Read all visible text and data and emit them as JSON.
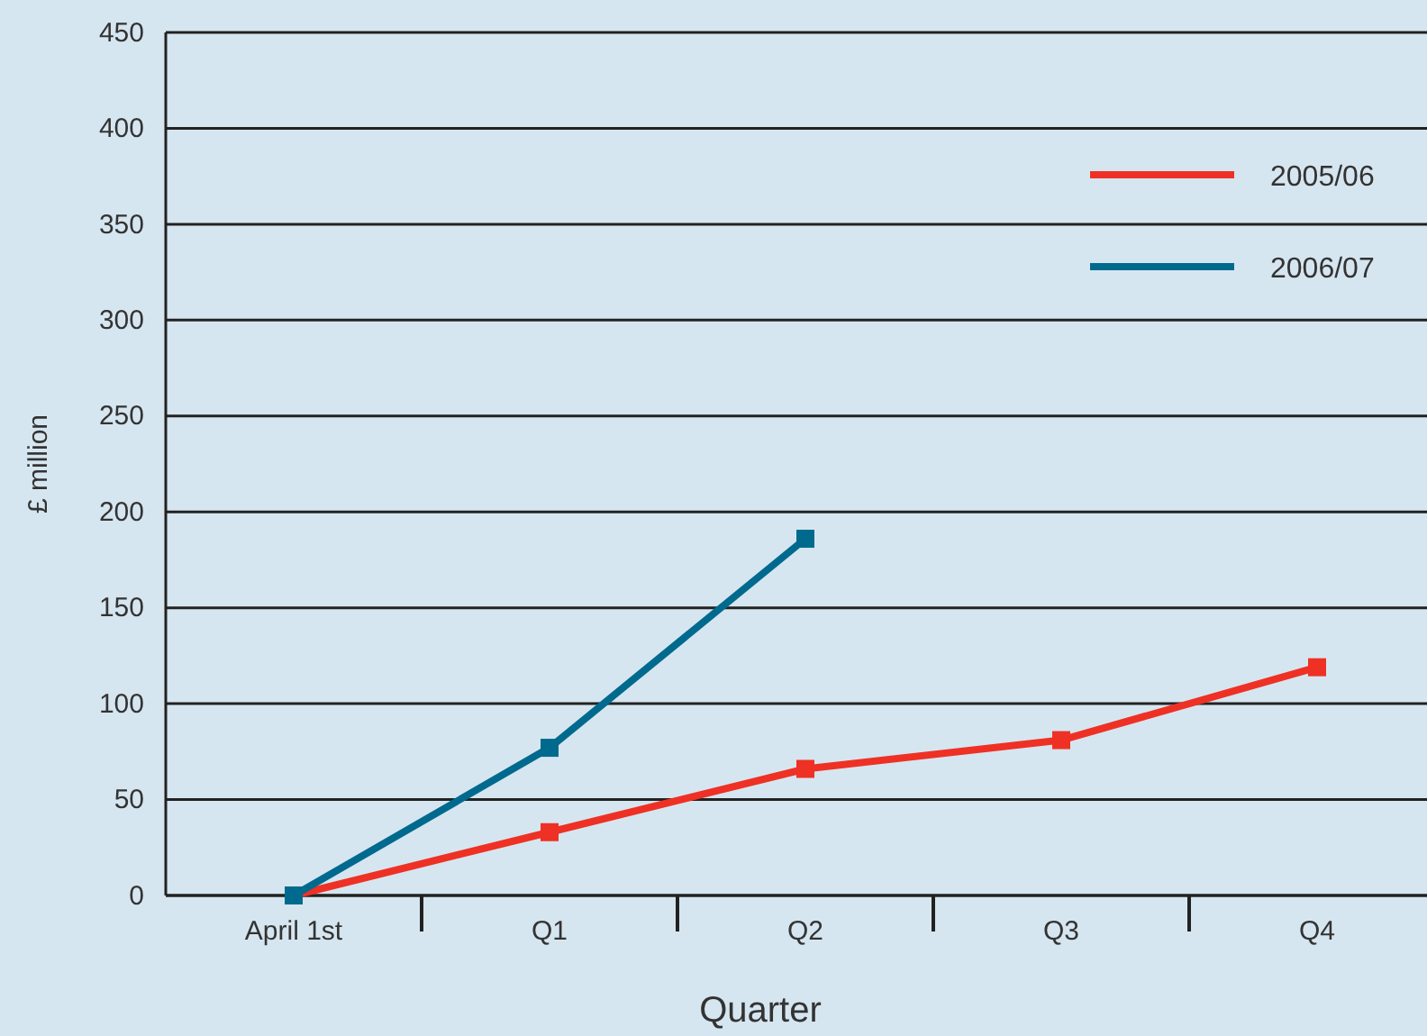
{
  "chart_data": {
    "type": "line",
    "xlabel": "Quarter",
    "ylabel": "£ million",
    "categories": [
      "April 1st",
      "Q1",
      "Q2",
      "Q3",
      "Q4"
    ],
    "series": [
      {
        "name": "2005/06",
        "color": "#ee3124",
        "values": [
          0,
          33,
          66,
          81,
          119
        ]
      },
      {
        "name": "2006/07",
        "color": "#006a8e",
        "values": [
          0,
          77,
          186,
          null,
          null
        ]
      }
    ],
    "ylim": [
      0,
      450
    ],
    "yticks": [
      0,
      50,
      100,
      150,
      200,
      250,
      300,
      350,
      400,
      450
    ],
    "grid": "y",
    "legend": "top right",
    "marker": "square",
    "line_style": "solid"
  }
}
